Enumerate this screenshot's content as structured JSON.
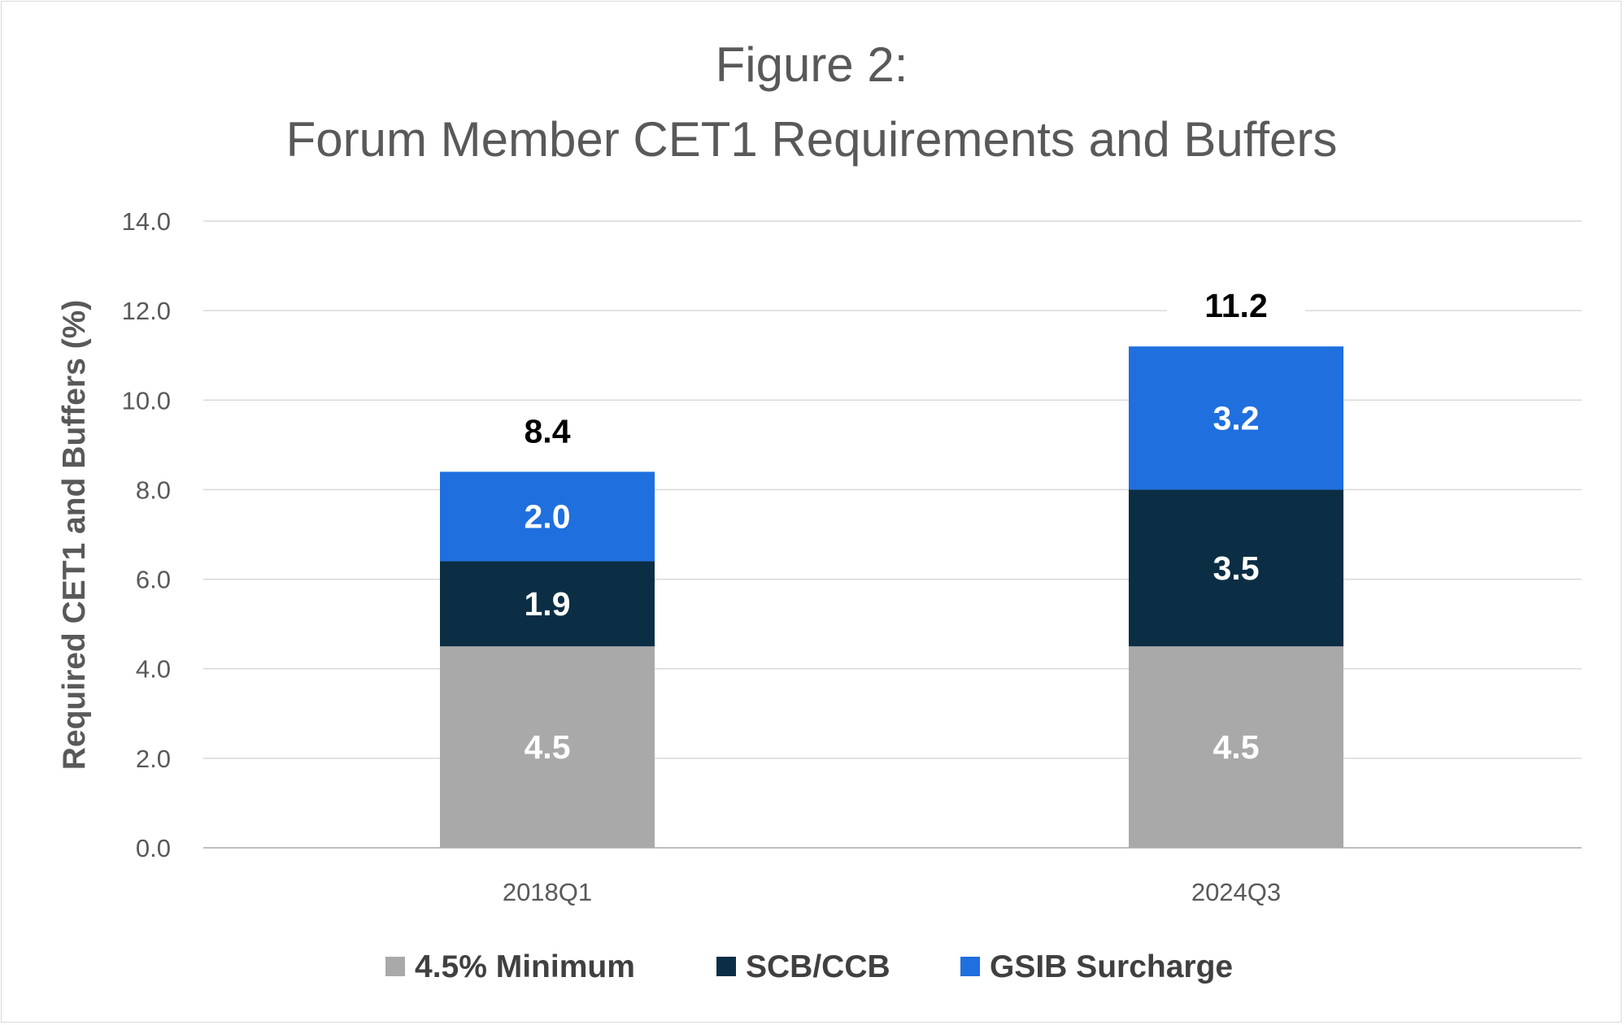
{
  "chart_data": {
    "type": "bar",
    "stacked": true,
    "title": [
      "Figure 2:",
      "Forum Member CET1 Requirements and Buffers"
    ],
    "ylabel": "Required CET1 and Buffers (%)",
    "xlabel": "",
    "ylim": [
      0,
      14
    ],
    "yticks": [
      "0.0",
      "2.0",
      "4.0",
      "6.0",
      "8.0",
      "10.0",
      "12.0",
      "14.0"
    ],
    "grid": true,
    "legend_position": "bottom",
    "categories": [
      "2018Q1",
      "2024Q3"
    ],
    "series": [
      {
        "name": "4.5% Minimum",
        "color": "#a9a9a9",
        "values": [
          4.5,
          4.5
        ],
        "labels": [
          "4.5",
          "4.5"
        ]
      },
      {
        "name": "SCB/CCB",
        "color": "#0b2e44",
        "values": [
          1.9,
          3.5
        ],
        "labels": [
          "1.9",
          "3.5"
        ]
      },
      {
        "name": "GSIB Surcharge",
        "color": "#1f6fde",
        "values": [
          2.0,
          3.2
        ],
        "labels": [
          "2.0",
          "3.2"
        ]
      }
    ],
    "totals": [
      8.4,
      11.2
    ],
    "total_labels": [
      "8.4",
      "11.2"
    ]
  }
}
